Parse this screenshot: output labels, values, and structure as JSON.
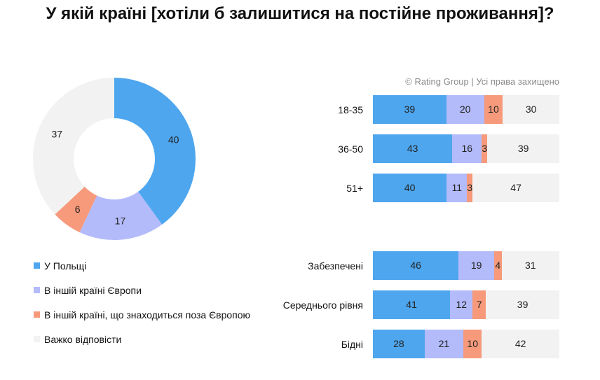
{
  "title": "У якій країні [хотіли б залишитися на постійне проживання]?",
  "copyright": "© Rating Group | Усі права захищено",
  "colors": {
    "poland": "#4EA6EE",
    "europe": "#B3BBFB",
    "outside": "#F69A7B",
    "hard": "#F2F2F2"
  },
  "legend": [
    {
      "key": "poland",
      "label": "У Польщі"
    },
    {
      "key": "europe",
      "label": "В іншій країні Європи"
    },
    {
      "key": "outside",
      "label": "В іншій країні, що знаходиться поза Європою"
    },
    {
      "key": "hard",
      "label": "Важко відповісти"
    }
  ],
  "chart_data": [
    {
      "type": "pie",
      "variant": "donut",
      "labels": [
        "У Польщі",
        "В іншій країні Європи",
        "В іншій країні, що знаходиться поза Європою",
        "Важко відповісти"
      ],
      "values": [
        40,
        17,
        6,
        37
      ],
      "value_labels": [
        "40",
        "17",
        "6",
        "37"
      ]
    },
    {
      "type": "bar",
      "orientation": "horizontal",
      "stacked": true,
      "normalized": true,
      "groups": [
        {
          "categories": [
            "18-35",
            "36-50",
            "51+"
          ]
        },
        {
          "categories": [
            "Забезпечені",
            "Середнього рівня",
            "Бідні"
          ]
        }
      ],
      "categories": [
        "18-35",
        "36-50",
        "51+",
        "Забезпечені",
        "Середнього рівня",
        "Бідні"
      ],
      "series": [
        {
          "name": "У Польщі",
          "values": [
            39,
            43,
            40,
            46,
            41,
            28
          ]
        },
        {
          "name": "В іншій країні Європи",
          "values": [
            20,
            16,
            11,
            19,
            12,
            21
          ]
        },
        {
          "name": "В іншій країні, що знаходиться поза Європою",
          "values": [
            10,
            3,
            3,
            4,
            7,
            10
          ]
        },
        {
          "name": "Важко відповісти",
          "values": [
            30,
            39,
            47,
            31,
            39,
            42
          ]
        }
      ]
    }
  ]
}
